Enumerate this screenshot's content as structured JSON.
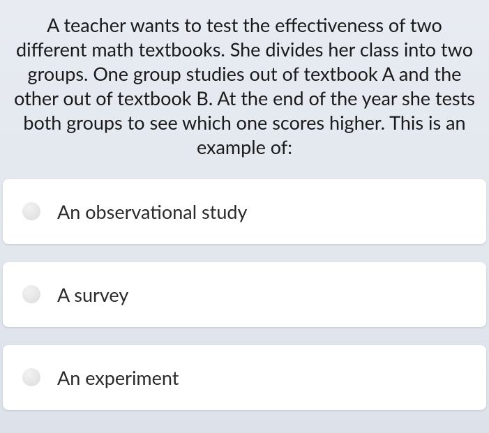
{
  "question": {
    "text": "A teacher wants to test the effectiveness of two different math textbooks. She divides her class into two groups. One group studies out of textbook A and the other out of textbook B. At the end of the year she tests both groups to see which one scores higher. This is an example of:"
  },
  "options": [
    {
      "label": "An observational study"
    },
    {
      "label": "A survey"
    },
    {
      "label": "An experiment"
    }
  ],
  "colors": {
    "background_top": "#e8ecf2",
    "background_bottom": "#dde2ea",
    "card_bg": "#ffffff",
    "text": "#1a1a1a",
    "option_text": "#2a2a2a",
    "radio_light": "#f2f2f2",
    "radio_dark": "#dcdcdc"
  },
  "typography": {
    "question_fontsize": 27,
    "option_fontsize": 27
  }
}
